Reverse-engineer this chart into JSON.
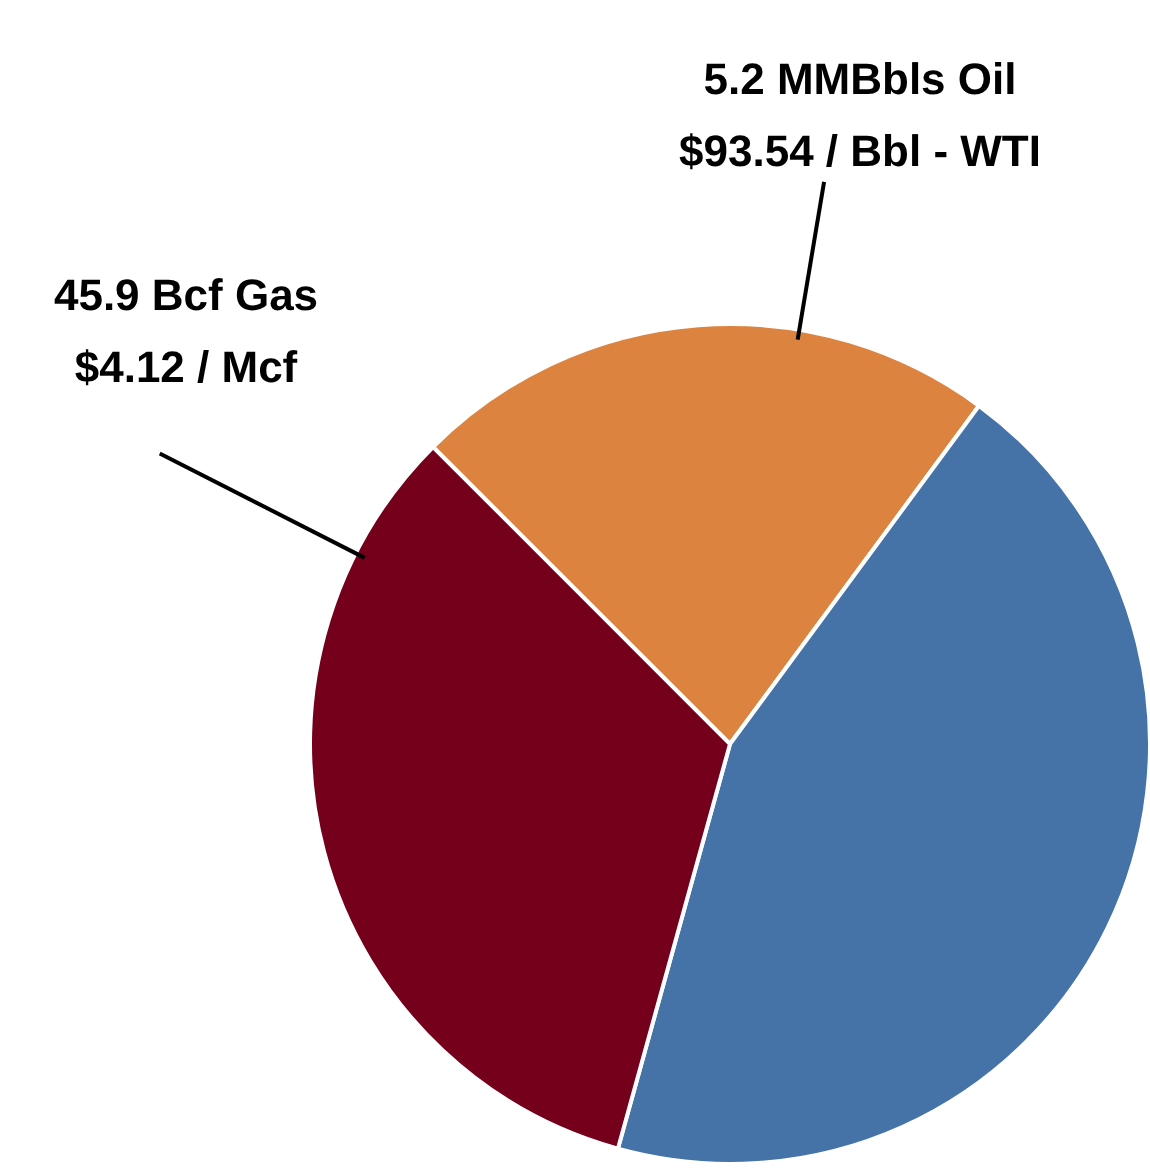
{
  "chart_data": {
    "type": "pie",
    "categories": [
      "5.2 MMBbls Oil\n$93.54 / Bbl - WTI",
      null,
      "45.9 Bcf Gas\n$4.12 / Mcf"
    ],
    "values": [
      22.6,
      44.2,
      33.2
    ],
    "colors": [
      "#dc843f",
      "#4673a7",
      "#74001c"
    ]
  }
}
